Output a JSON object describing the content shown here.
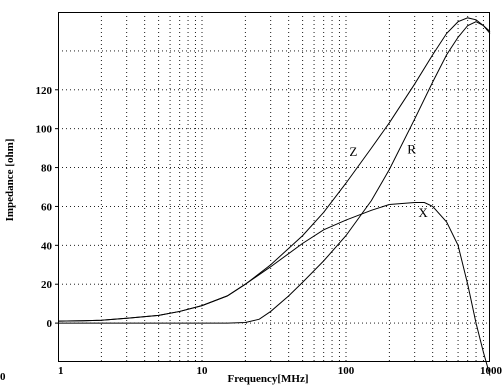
{
  "chart_data": {
    "type": "line",
    "xlabel": "Frequency[MHz]",
    "ylabel": "Impedance [ohm]",
    "xscale": "log",
    "xlim": [
      1,
      1000
    ],
    "ylim": [
      -20,
      160
    ],
    "grid": true,
    "x_ticks": [
      "1",
      "10",
      "100",
      "1000"
    ],
    "y_ticks": [
      "0",
      "20",
      "40",
      "60",
      "80",
      "100",
      "120"
    ],
    "stray_label": "0",
    "series": [
      {
        "name": "Z",
        "x": [
          1,
          1.5,
          2,
          3,
          5,
          7,
          10,
          15,
          20,
          30,
          50,
          70,
          100,
          150,
          200,
          300,
          400,
          500,
          600,
          700,
          800,
          900,
          1000
        ],
        "y": [
          1,
          1.2,
          1.5,
          2.5,
          4,
          6,
          9,
          14,
          20,
          30,
          45,
          57,
          72,
          90,
          103,
          123,
          138,
          149,
          155,
          157,
          156,
          153,
          149
        ]
      },
      {
        "name": "R",
        "x": [
          1,
          2,
          5,
          10,
          15,
          20,
          25,
          30,
          40,
          50,
          70,
          100,
          150,
          200,
          300,
          400,
          500,
          600,
          700,
          800,
          900,
          1000
        ],
        "y": [
          0,
          0,
          0,
          0,
          0,
          0.3,
          2,
          6,
          14,
          21,
          32,
          45,
          63,
          79,
          105,
          124,
          138,
          147,
          153,
          155,
          153,
          150
        ]
      },
      {
        "name": "X",
        "x": [
          1,
          1.5,
          2,
          3,
          5,
          7,
          10,
          15,
          20,
          30,
          50,
          70,
          100,
          150,
          200,
          300,
          350,
          400,
          500,
          600,
          700,
          800,
          900,
          1000
        ],
        "y": [
          1,
          1.2,
          1.5,
          2.5,
          4,
          6,
          9,
          14,
          20,
          29,
          41,
          48,
          53,
          58,
          61,
          62,
          62,
          60,
          52,
          40,
          20,
          0,
          -15,
          -27
        ]
      }
    ]
  }
}
